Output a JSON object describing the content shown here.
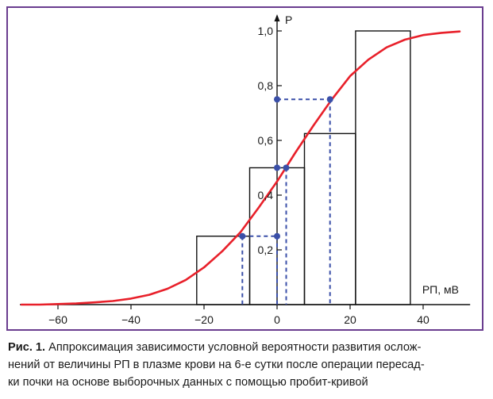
{
  "chart_data": {
    "type": "line",
    "xlabel": "РП, мВ",
    "ylabel": "P",
    "xlim": [
      -70,
      52
    ],
    "ylim": [
      0,
      1.05
    ],
    "x_ticks": [
      -60,
      -40,
      -20,
      0,
      20,
      40
    ],
    "x_tick_labels": [
      "−60",
      "−40",
      "−20",
      "0",
      "20",
      "40"
    ],
    "y_ticks": [
      0.2,
      0.4,
      0.6,
      0.8,
      1.0
    ],
    "y_tick_labels": [
      "0,2",
      "0,4",
      "0,6",
      "0,8",
      "1,0"
    ],
    "grid": false,
    "histogram": [
      {
        "x0": -22,
        "x1": -7.5,
        "value": 0.25
      },
      {
        "x0": -7.5,
        "x1": 7.5,
        "value": 0.5
      },
      {
        "x0": 7.5,
        "x1": 21.5,
        "value": 0.625
      },
      {
        "x0": 21.5,
        "x1": 36.5,
        "value": 1.0
      }
    ],
    "series": [
      {
        "type": "line",
        "color": "#e8202a",
        "x": [
          -70,
          -65,
          -60,
          -55,
          -50,
          -45,
          -40,
          -35,
          -30,
          -25,
          -20,
          -15,
          -10,
          -5,
          0,
          5,
          10,
          15,
          20,
          25,
          30,
          35,
          40,
          45,
          50
        ],
        "y": [
          0.0,
          0.0,
          0.002,
          0.004,
          0.008,
          0.013,
          0.022,
          0.036,
          0.058,
          0.09,
          0.136,
          0.195,
          0.265,
          0.355,
          0.45,
          0.555,
          0.655,
          0.75,
          0.835,
          0.895,
          0.94,
          0.968,
          0.985,
          0.993,
          0.998
        ]
      }
    ],
    "reference_points": [
      {
        "x": -9.5,
        "y": 0.25
      },
      {
        "x": 0,
        "y": 0.25
      },
      {
        "x": 0,
        "y": 0.5
      },
      {
        "x": 2.5,
        "y": 0.5
      },
      {
        "x": 0,
        "y": 0.75
      },
      {
        "x": 14.5,
        "y": 0.75
      }
    ],
    "marker_color": "#3a4fa8"
  },
  "caption": {
    "label": "Рис. 1.",
    "line1": "Аппроксимация зависимости условной вероятности развития ослож-",
    "line2": "нений от величины РП в плазме крови на 6-е сутки после операции пересад-",
    "line3": "ки почки на основе выборочных данных с помощью пробит-кривой"
  }
}
